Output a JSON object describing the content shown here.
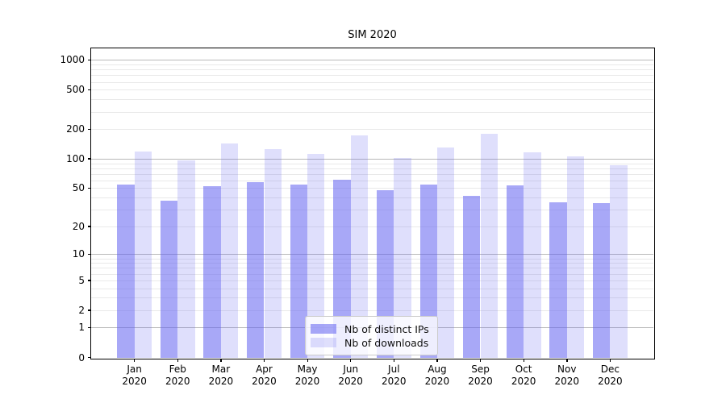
{
  "chart_data": {
    "type": "bar",
    "title": "SIM 2020",
    "categories": [
      "Jan",
      "Feb",
      "Mar",
      "Apr",
      "May",
      "Jun",
      "Jul",
      "Aug",
      "Sep",
      "Oct",
      "Nov",
      "Dec"
    ],
    "category_year": "2020",
    "series": [
      {
        "name": "Nb of distinct IPs",
        "color": "rgba(96,96,240,0.55)",
        "values": [
          55,
          37,
          52,
          58,
          55,
          61,
          48,
          55,
          42,
          53,
          36,
          35
        ]
      },
      {
        "name": "Nb of downloads",
        "color": "rgba(96,96,240,0.20)",
        "values": [
          119,
          96,
          142,
          125,
          111,
          172,
          102,
          130,
          180,
          117,
          106,
          86
        ]
      }
    ],
    "y_axis": {
      "scale": "log1p",
      "tick_values": [
        0,
        1,
        2,
        5,
        10,
        20,
        50,
        100,
        200,
        500,
        1000
      ],
      "tick_labels": [
        "0",
        "1",
        "2",
        "5",
        "10",
        "20",
        "50",
        "100",
        "200",
        "500",
        "1000"
      ],
      "major_gridlines": [
        1,
        10,
        100,
        1000
      ],
      "minor_gridline_decades": [
        1,
        10,
        100
      ],
      "minor_gridline_significands": [
        2,
        3,
        4,
        5,
        6,
        7,
        8,
        9
      ],
      "ylim": [
        0,
        1300
      ]
    },
    "legend_position": "lower-center-inside",
    "grid": "horizontal major+minor",
    "colors": {
      "bar_base": "#6060f0",
      "major_grid": "#b9b9b9",
      "minor_grid": "#e9e9e9",
      "axis": "#000000"
    }
  }
}
